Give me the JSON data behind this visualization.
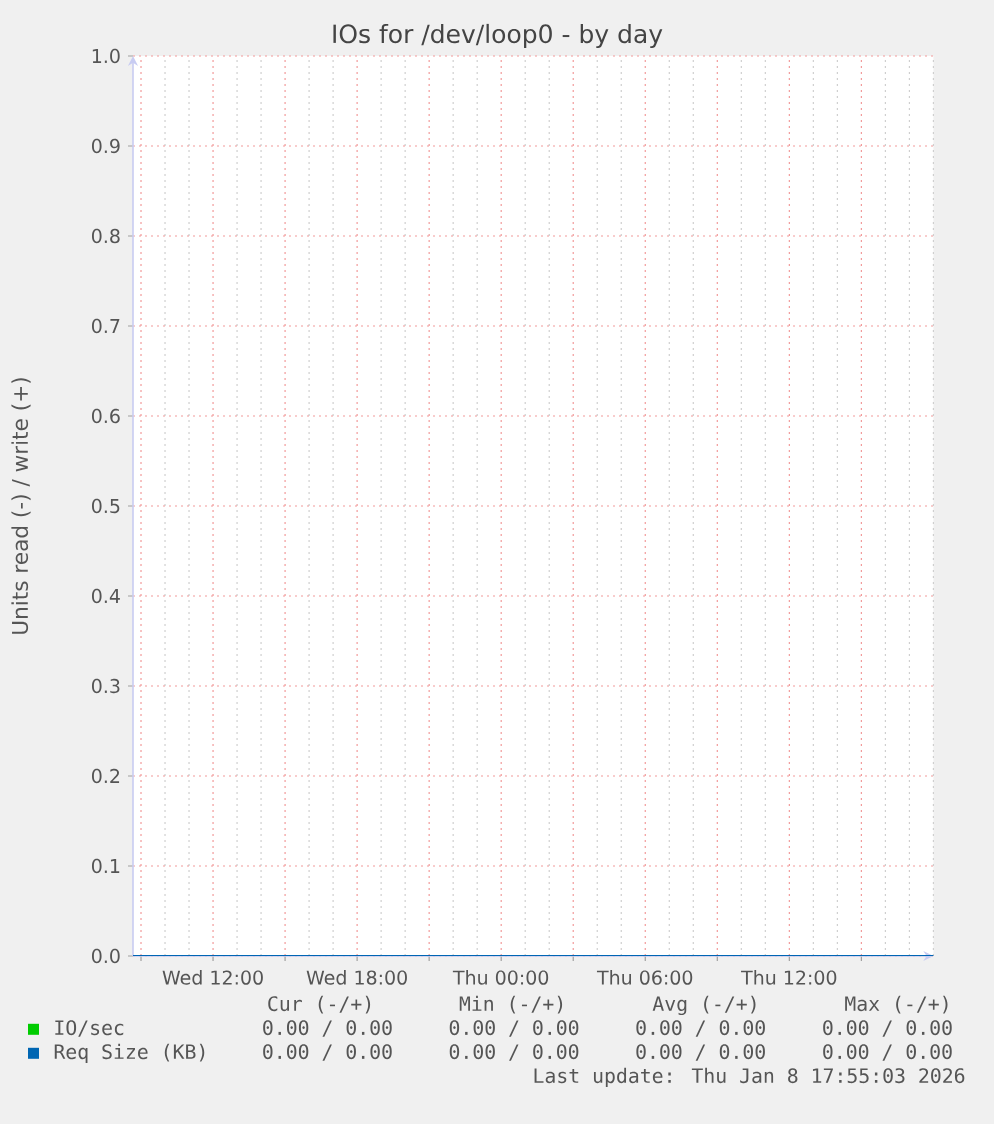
{
  "chart_data": {
    "type": "line",
    "title": "IOs for /dev/loop0 - by day",
    "ylabel": "Units read (-) / write (+)",
    "x": [
      "2026-01-07T08:40",
      "2026-01-08T18:00"
    ],
    "series": [
      {
        "name": "IO/sec",
        "color": "#00cc00",
        "values": [
          null,
          null
        ]
      },
      {
        "name": "Req Size (KB)",
        "color": "#0066b3",
        "values": [
          0,
          0
        ]
      }
    ],
    "xlim": [
      "2026-01-07T08:40",
      "2026-01-08T18:00"
    ],
    "xticks": [
      {
        "value": "2026-01-07T09:00",
        "label": null
      },
      {
        "value": "2026-01-07T12:00",
        "label": "Wed 12:00"
      },
      {
        "value": "2026-01-07T15:00",
        "label": null
      },
      {
        "value": "2026-01-07T18:00",
        "label": "Wed 18:00"
      },
      {
        "value": "2026-01-07T21:00",
        "label": null
      },
      {
        "value": "2026-01-08T00:00",
        "label": "Thu 00:00"
      },
      {
        "value": "2026-01-08T03:00",
        "label": null
      },
      {
        "value": "2026-01-08T06:00",
        "label": "Thu 06:00"
      },
      {
        "value": "2026-01-08T09:00",
        "label": null
      },
      {
        "value": "2026-01-08T12:00",
        "label": "Thu 12:00"
      },
      {
        "value": "2026-01-08T15:00",
        "label": null
      }
    ],
    "ylim": [
      0,
      1
    ],
    "yticks": [
      {
        "value": 0,
        "label": "0.0"
      },
      {
        "value": 0.1,
        "label": "0.1"
      },
      {
        "value": 0.2,
        "label": "0.2"
      },
      {
        "value": 0.3,
        "label": "0.3"
      },
      {
        "value": 0.4,
        "label": "0.4"
      },
      {
        "value": 0.5,
        "label": "0.5"
      },
      {
        "value": 0.6,
        "label": "0.6"
      },
      {
        "value": 0.7,
        "label": "0.7"
      },
      {
        "value": 0.8,
        "label": "0.8"
      },
      {
        "value": 0.9,
        "label": "0.9"
      },
      {
        "value": 1,
        "label": "1.0"
      }
    ],
    "grid": true,
    "legend": "bottom",
    "annotations": [
      "Cur (-/+)",
      "Min (-/+)",
      "Avg (-/+)",
      "Max (-/+)",
      "0.00 / 0.00",
      "0.00 / 0.00",
      "0.00 / 0.00",
      "0.00 / 0.00",
      "0.00 / 0.00",
      "0.00 / 0.00",
      "0.00 / 0.00",
      "0.00 / 0.00",
      "Last update: Thu Jan  8 17:55:03 2026"
    ]
  }
}
